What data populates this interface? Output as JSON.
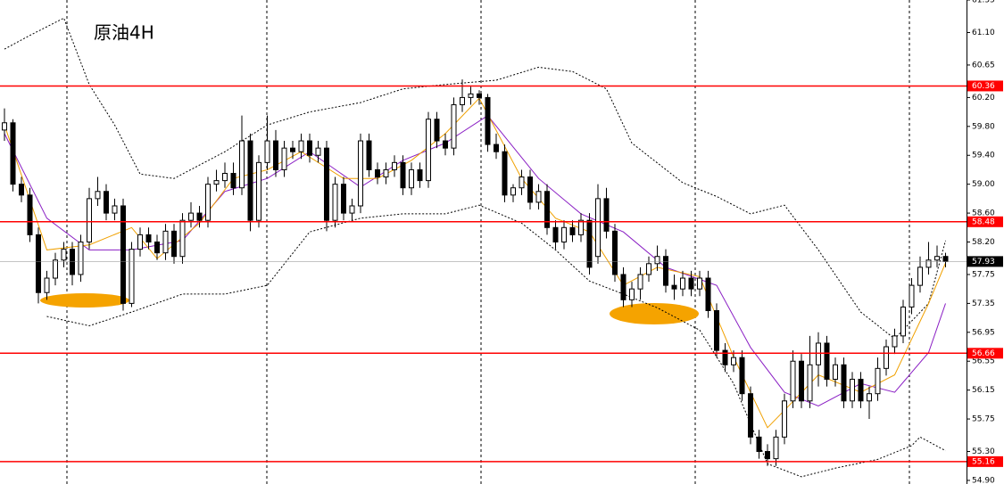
{
  "chart_data": {
    "type": "candlestick",
    "title": "原油4H",
    "ylim": [
      54.85,
      61.55
    ],
    "xlim": [
      0,
      111
    ],
    "yticks": [
      61.55,
      {
        "value": 61.1,
        "label": "61.10"
      },
      60.65,
      {
        "value": 60.2,
        "label": "60.20"
      },
      {
        "value": 59.8,
        "label": "59.80"
      },
      {
        "value": 59.4,
        "label": "59.40"
      },
      {
        "value": 59.0,
        "label": "59.00"
      },
      {
        "value": 58.6,
        "label": "58.60"
      },
      {
        "value": 58.2,
        "label": "58.20"
      },
      57.75,
      57.35,
      56.95,
      56.55,
      56.15,
      55.75,
      {
        "value": 55.3,
        "label": "55.30"
      },
      {
        "value": 54.9,
        "label": "54.90"
      }
    ],
    "open": [
      59.75,
      59.85,
      59.0,
      58.85,
      58.3,
      57.5,
      57.7,
      57.95,
      58.1,
      57.75,
      58.2,
      58.8,
      58.9,
      58.6,
      58.7,
      57.35,
      58.1,
      58.3,
      58.2,
      58.05,
      58.35,
      58.0,
      58.5,
      58.6,
      58.5,
      59.0,
      59.05,
      59.15,
      58.95,
      59.6,
      58.5,
      59.3,
      59.6,
      59.2,
      59.5,
      59.45,
      59.6,
      59.4,
      59.5,
      58.5,
      59.0,
      58.6,
      58.7,
      59.6,
      59.2,
      59.1,
      59.2,
      59.3,
      58.95,
      59.2,
      59.05,
      59.9,
      59.6,
      59.5,
      60.1,
      60.2,
      60.25,
      60.2,
      59.55,
      59.45,
      58.85,
      58.95,
      59.1,
      58.75,
      58.9,
      58.4,
      58.2,
      58.4,
      58.3,
      58.5,
      58.0,
      58.8,
      58.35,
      57.75,
      57.4,
      57.55,
      57.75,
      57.9,
      58.0,
      57.6,
      57.55,
      57.7,
      57.55,
      57.7,
      57.25,
      56.7,
      56.5,
      56.6,
      56.1,
      55.5,
      55.3,
      55.2,
      55.5,
      56.0,
      56.55,
      56.0,
      56.5,
      56.8,
      56.3,
      56.5,
      56.0,
      56.3,
      56.0,
      56.1,
      56.45,
      56.75,
      56.9,
      57.3,
      57.6,
      57.85,
      57.95,
      58.0
    ],
    "high": [
      60.05,
      59.9,
      59.1,
      58.95,
      58.4,
      57.8,
      58.05,
      58.2,
      58.2,
      58.3,
      58.95,
      59.1,
      59.0,
      58.8,
      58.8,
      58.2,
      58.4,
      58.4,
      58.3,
      58.45,
      58.45,
      58.6,
      58.75,
      58.7,
      59.1,
      59.2,
      59.3,
      59.3,
      59.95,
      59.7,
      59.4,
      59.95,
      59.75,
      59.6,
      59.6,
      59.7,
      59.7,
      59.6,
      59.6,
      59.1,
      59.1,
      58.8,
      59.7,
      59.7,
      59.3,
      59.3,
      59.4,
      59.4,
      59.3,
      59.3,
      60.0,
      60.0,
      59.7,
      60.2,
      60.45,
      60.35,
      60.3,
      60.25,
      59.7,
      59.55,
      59.0,
      59.2,
      59.2,
      59.0,
      59.0,
      58.5,
      58.5,
      58.5,
      58.6,
      58.6,
      59.0,
      58.95,
      58.45,
      57.85,
      57.65,
      57.85,
      58.0,
      58.15,
      58.1,
      57.75,
      57.8,
      57.8,
      57.8,
      57.8,
      57.35,
      56.8,
      56.7,
      56.7,
      56.2,
      55.6,
      55.4,
      55.6,
      56.1,
      56.7,
      56.65,
      56.9,
      56.95,
      56.9,
      56.6,
      56.6,
      56.4,
      56.4,
      56.2,
      56.6,
      56.85,
      57.0,
      57.4,
      57.7,
      58.0,
      58.2,
      58.15,
      58.05
    ],
    "low": [
      59.6,
      58.9,
      58.75,
      58.2,
      57.35,
      57.4,
      57.6,
      57.85,
      57.6,
      57.65,
      58.1,
      58.7,
      58.5,
      58.5,
      57.25,
      57.3,
      58.0,
      58.1,
      57.95,
      57.95,
      57.9,
      57.9,
      58.4,
      58.4,
      58.4,
      58.9,
      58.95,
      58.85,
      58.85,
      58.35,
      58.4,
      59.2,
      59.1,
      59.1,
      59.35,
      59.35,
      59.3,
      59.3,
      58.35,
      58.4,
      58.5,
      58.5,
      58.6,
      59.1,
      59.0,
      59.0,
      59.1,
      58.85,
      58.85,
      58.95,
      58.95,
      59.5,
      59.4,
      59.4,
      60.0,
      60.1,
      60.1,
      59.45,
      59.35,
      58.75,
      58.75,
      58.85,
      58.65,
      58.65,
      58.3,
      58.1,
      58.1,
      58.2,
      58.2,
      57.75,
      57.9,
      58.25,
      57.65,
      57.3,
      57.3,
      57.4,
      57.65,
      57.8,
      57.5,
      57.4,
      57.45,
      57.45,
      57.45,
      57.15,
      56.6,
      56.4,
      56.4,
      56.0,
      55.4,
      55.2,
      55.1,
      55.1,
      55.4,
      55.9,
      55.9,
      55.9,
      56.2,
      56.2,
      56.2,
      55.9,
      55.9,
      55.9,
      55.75,
      56.0,
      56.35,
      56.65,
      56.8,
      57.2,
      57.5,
      57.75,
      57.85,
      57.85
    ],
    "close": [
      59.85,
      59.0,
      58.85,
      58.3,
      57.5,
      57.7,
      57.95,
      58.1,
      57.75,
      58.2,
      58.8,
      58.9,
      58.6,
      58.7,
      57.35,
      58.1,
      58.3,
      58.2,
      58.05,
      58.35,
      58.0,
      58.5,
      58.6,
      58.5,
      59.0,
      59.05,
      59.15,
      58.95,
      59.6,
      58.5,
      59.3,
      59.6,
      59.2,
      59.5,
      59.45,
      59.6,
      59.4,
      59.5,
      58.5,
      59.0,
      58.6,
      58.7,
      59.6,
      59.2,
      59.1,
      59.2,
      59.3,
      58.95,
      59.2,
      59.05,
      59.9,
      59.6,
      59.5,
      60.1,
      60.2,
      60.25,
      60.2,
      59.55,
      59.45,
      58.85,
      58.95,
      59.1,
      58.75,
      58.9,
      58.4,
      58.2,
      58.4,
      58.3,
      58.5,
      57.85,
      58.8,
      58.35,
      57.75,
      57.4,
      57.55,
      57.75,
      57.9,
      58.0,
      57.6,
      57.55,
      57.7,
      57.55,
      57.7,
      57.25,
      56.7,
      56.5,
      56.6,
      56.1,
      55.5,
      55.3,
      55.2,
      55.5,
      56.0,
      56.55,
      56.0,
      56.5,
      56.8,
      56.3,
      56.5,
      56.0,
      56.3,
      56.0,
      56.1,
      56.45,
      56.75,
      56.9,
      57.3,
      57.6,
      57.85,
      57.95,
      58.0,
      57.93
    ],
    "overlays": [
      {
        "color": "#000000",
        "style": "dotted",
        "x": [
          0,
          3,
          7,
          10,
          13,
          16,
          20,
          26,
          31,
          36,
          42,
          47,
          52,
          58,
          63,
          67,
          71,
          74,
          80,
          84,
          88,
          92,
          96,
          101,
          105,
          109,
          111
        ],
        "values": [
          60.87,
          61.06,
          61.3,
          60.38,
          59.82,
          59.14,
          59.08,
          59.45,
          59.82,
          60.0,
          60.13,
          60.32,
          60.38,
          60.44,
          60.62,
          60.56,
          60.32,
          59.57,
          59.02,
          58.83,
          58.59,
          58.71,
          58.09,
          57.23,
          56.86,
          57.35,
          58.22
        ]
      },
      {
        "color": "#000000",
        "style": "dotted",
        "x": [
          5,
          10,
          15,
          21,
          26,
          31,
          36,
          42,
          47,
          52,
          56,
          61,
          65,
          69,
          73,
          77,
          82,
          86,
          90,
          94,
          98,
          103,
          107,
          108,
          111
        ],
        "values": [
          57.17,
          57.04,
          57.23,
          57.48,
          57.48,
          57.6,
          58.34,
          58.53,
          58.59,
          58.59,
          58.71,
          58.46,
          58.09,
          57.66,
          57.48,
          57.29,
          56.98,
          56.24,
          55.13,
          54.95,
          55.07,
          55.19,
          55.38,
          55.5,
          55.31
        ]
      },
      {
        "color": "#8a1fc4",
        "style": "solid",
        "x": [
          0,
          5,
          10,
          15,
          21,
          26,
          31,
          36,
          42,
          47,
          52,
          57,
          63,
          68,
          73,
          78,
          84,
          88,
          92,
          96,
          101,
          105,
          109,
          111
        ],
        "values": [
          59.7,
          58.53,
          58.09,
          58.09,
          58.22,
          58.9,
          59.08,
          59.45,
          58.96,
          59.33,
          59.57,
          59.95,
          59.08,
          58.59,
          58.34,
          57.85,
          57.6,
          56.74,
          56.12,
          55.93,
          56.24,
          56.12,
          56.67,
          57.35
        ]
      },
      {
        "color": "#f0a000",
        "style": "solid",
        "x": [
          0,
          5,
          10,
          15,
          18,
          23,
          27,
          31,
          35,
          40,
          44,
          48,
          52,
          56,
          61,
          65,
          69,
          73,
          77,
          82,
          86,
          90,
          92,
          96,
          101,
          105,
          109,
          111
        ],
        "values": [
          59.82,
          58.09,
          58.16,
          58.4,
          57.97,
          58.46,
          59.08,
          59.2,
          59.45,
          59.08,
          59.08,
          59.33,
          59.7,
          60.19,
          59.08,
          58.53,
          58.34,
          57.6,
          57.85,
          57.72,
          56.61,
          55.63,
          55.87,
          56.36,
          56.12,
          56.36,
          57.35,
          57.91
        ]
      }
    ],
    "levels": [
      60.36,
      58.48,
      56.66,
      55.16
    ],
    "level_color": "#ff0000",
    "up_color": "#ffffff",
    "down_color": "#000000"
  }
}
